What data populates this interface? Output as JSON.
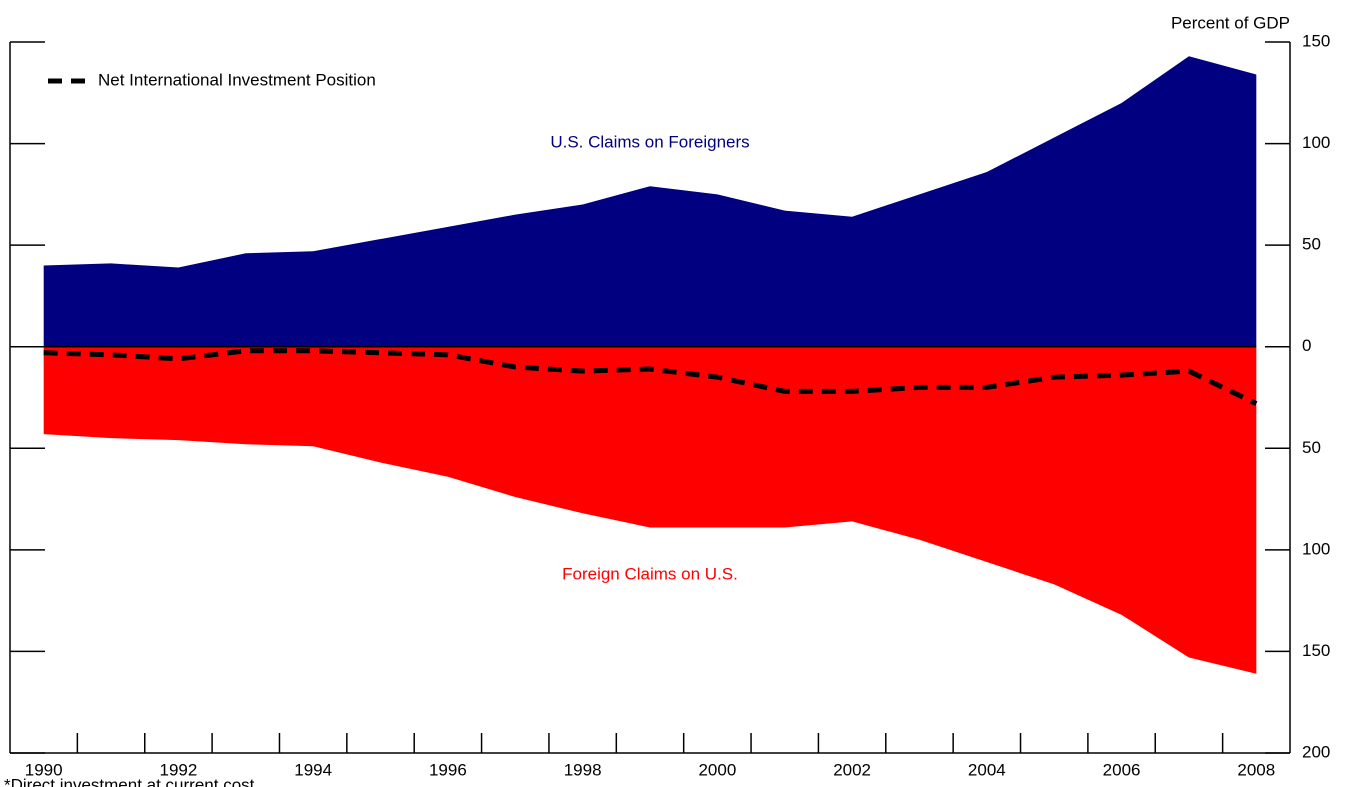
{
  "chart_data": {
    "type": "area",
    "y_axis_label": "Percent of GDP",
    "footnote": "*Direct investment at current cost.",
    "x": [
      1990,
      1991,
      1992,
      1993,
      1994,
      1995,
      1996,
      1997,
      1998,
      1999,
      2000,
      2001,
      2002,
      2003,
      2004,
      2005,
      2006,
      2007,
      2008
    ],
    "xlim": [
      1989.5,
      2008.5
    ],
    "xticks": [
      1990,
      1992,
      1994,
      1996,
      1998,
      2000,
      2002,
      2004,
      2006,
      2008
    ],
    "xminorticks": [
      1990.5,
      1991.5,
      1992.5,
      1993.5,
      1994.5,
      1995.5,
      1996.5,
      1997.5,
      1998.5,
      1999.5,
      2000.5,
      2001.5,
      2002.5,
      2003.5,
      2004.5,
      2005.5,
      2006.5,
      2007.5
    ],
    "ylim": [
      -200,
      150
    ],
    "yticks": [
      150,
      100,
      50,
      0,
      {
        "value": -50,
        "label": "50"
      },
      {
        "value": -100,
        "label": "100"
      },
      {
        "value": -150,
        "label": "150"
      },
      {
        "value": -200,
        "label": "200"
      }
    ],
    "legend": "upper left",
    "series": [
      {
        "name": "U.S. Claims on Foreigners",
        "kind": "area",
        "color": "#000080",
        "values": [
          40,
          41,
          39,
          46,
          47,
          53,
          59,
          65,
          70,
          79,
          75,
          67,
          64,
          75,
          86,
          103,
          120,
          143,
          134
        ]
      },
      {
        "name": "Foreign Claims on U.S.",
        "kind": "area",
        "color": "#ff0000",
        "values": [
          -43,
          -45,
          -46,
          -48,
          -49,
          -57,
          -64,
          -74,
          -82,
          -89,
          -89,
          -89,
          -86,
          -95,
          -106,
          -117,
          -132,
          -153,
          -161
        ]
      },
      {
        "name": "Net International Investment Position",
        "kind": "line",
        "dashed": true,
        "color": "#000000",
        "values": [
          -3,
          -4,
          -6,
          -2,
          -2,
          -3,
          -4,
          -10,
          -12,
          -11,
          -15,
          -22,
          -22,
          -20,
          -20,
          -15,
          -14,
          -12,
          -28
        ]
      }
    ]
  }
}
